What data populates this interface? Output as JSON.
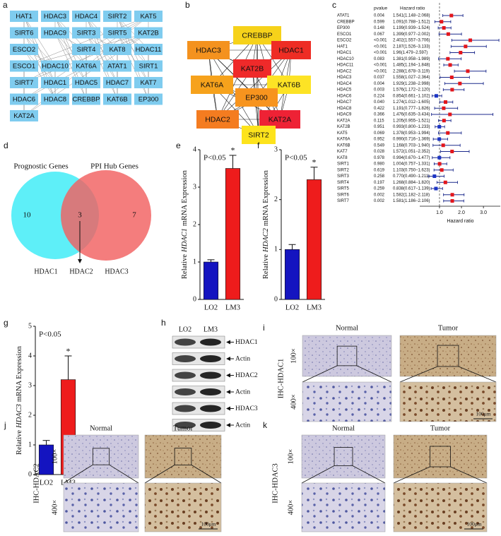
{
  "panel_a": {
    "label": "a",
    "nodes": [
      "HAT1",
      "HDAC3",
      "HDAC4",
      "SIRT2",
      "KAT5",
      "SIRT6",
      "HDAC9",
      "SIRT3",
      "SIRT5",
      "KAT2B",
      "ESCO2",
      "SIRT4",
      "KAT8",
      "HDAC11",
      "ESCO1",
      "HDAC10",
      "KAT6A",
      "ATAT1",
      "SIRT1",
      "SIRT7",
      "HDAC1",
      "HDAC5",
      "HDAC7",
      "KAT7",
      "HDAC6",
      "HDAC8",
      "CREBBP",
      "KAT6B",
      "EP300",
      "KAT2A"
    ]
  },
  "panel_b": {
    "label": "b",
    "nodes": [
      {
        "name": "CREBBP",
        "color": "#f6d21a"
      },
      {
        "name": "HDAC3",
        "color": "#f4921e"
      },
      {
        "name": "HDAC1",
        "color": "#ee2d24"
      },
      {
        "name": "KAT2B",
        "color": "#ef2a2a"
      },
      {
        "name": "KAT6A",
        "color": "#f6a21c"
      },
      {
        "name": "KAT6B",
        "color": "#fde325"
      },
      {
        "name": "EP300",
        "color": "#f7941e"
      },
      {
        "name": "HDAC2",
        "color": "#f47c20"
      },
      {
        "name": "KAT2A",
        "color": "#ee2235"
      },
      {
        "name": "SIRT2",
        "color": "#fde31c"
      }
    ]
  },
  "chart_data": [
    {
      "type": "forest",
      "label": "c",
      "headers": [
        "pvalue",
        "Hazard ratio"
      ],
      "genes": [
        "ATAT1",
        "CREBBP",
        "EP300",
        "ESCO1",
        "ESCO2",
        "HAT1",
        "HDAC1",
        "HDAC10",
        "HDAC11",
        "HDAC2",
        "HDAC3",
        "HDAC4",
        "HDAC5",
        "HDAC6",
        "HDAC7",
        "HDAC8",
        "HDAC9",
        "KAT2A",
        "KAT2B",
        "KAT5",
        "KAT6A",
        "KAT6B",
        "KAT7",
        "KAT8",
        "SIRT1",
        "SIRT2",
        "SIRT3",
        "SIRT4",
        "SIRT5",
        "SIRT6",
        "SIRT7"
      ],
      "pvalues": [
        "0.004",
        "0.599",
        "0.148",
        "0.067",
        "<0.001",
        "<0.001",
        "<0.001",
        "0.083",
        "<0.001",
        "<0.001",
        "0.037",
        "0.004",
        "0.003",
        "0.224",
        "0.040",
        "0.422",
        "0.366",
        "0.115",
        "0.951",
        "0.069",
        "0.952",
        "0.549",
        "0.028",
        "0.978",
        "0.980",
        "0.619",
        "0.258",
        "0.197",
        "0.259",
        "0.002",
        "0.002"
      ],
      "hr_labels": [
        "1.541(1.148−2.068)",
        "1.091(0.788−1.512)",
        "1.199(0.939−1.524)",
        "1.399(0.977−2.002)",
        "2.402(1.557−3.706)",
        "2.187(1.526−3.133)",
        "1.96(1.479−2.597)",
        "1.381(0.958−1.989)",
        "1.485(1.194−1.848)",
        "2.288(1.678−3.119)",
        "1.558(1.027−2.364)",
        "1.929(1.238−2.998)",
        "1.576(1.172−2.120)",
        "0.854(0.661−1.102)",
        "1.274(1.012−1.605)",
        "1.191(0.777−1.826)",
        "1.476(0.635−3.434)",
        "1.205(0.955−1.521)",
        "0.993(0.800−1.233)",
        "1.378(0.953−1.994)",
        "0.990(0.716−1.369)",
        "1.168(0.703−1.940)",
        "1.572(1.051−2.352)",
        "0.994(0.670−1.477)",
        "1.004(0.757−1.331)",
        "1.103(0.750−1.623)",
        "0.770(0.490−1.211)",
        "1.268(0.884−1.820)",
        "0.838(0.617−1.139)",
        "1.582(1.182−2.118)",
        "1.581(1.186−2.106)"
      ],
      "hr": [
        1.541,
        1.091,
        1.199,
        1.399,
        2.402,
        2.187,
        1.96,
        1.381,
        1.485,
        2.288,
        1.558,
        1.929,
        1.576,
        0.854,
        1.274,
        1.191,
        1.476,
        1.205,
        0.993,
        1.378,
        0.99,
        1.168,
        1.572,
        0.994,
        1.004,
        1.103,
        0.77,
        1.268,
        0.838,
        1.582,
        1.581
      ],
      "lower": [
        1.148,
        0.788,
        0.939,
        0.977,
        1.557,
        1.526,
        1.479,
        0.958,
        1.194,
        1.678,
        1.027,
        1.238,
        1.172,
        0.661,
        1.012,
        0.777,
        0.635,
        0.955,
        0.8,
        0.953,
        0.716,
        0.703,
        1.051,
        0.67,
        0.757,
        0.75,
        0.49,
        0.884,
        0.617,
        1.182,
        1.186
      ],
      "upper": [
        2.068,
        1.512,
        1.524,
        2.002,
        3.706,
        3.133,
        2.597,
        1.989,
        1.848,
        3.119,
        2.364,
        2.998,
        2.12,
        1.102,
        1.605,
        1.826,
        3.434,
        1.521,
        1.233,
        1.994,
        1.369,
        1.94,
        2.352,
        1.477,
        1.331,
        1.623,
        1.211,
        1.82,
        1.139,
        2.118,
        2.106
      ],
      "reference": 1,
      "color_up": "#e3161c",
      "color_down": "#1c35c4",
      "line_color": "#1c2a8c",
      "xlim": [
        0.1,
        3.8
      ],
      "xticks": [
        {
          "value": 1,
          "label": "1.0"
        },
        {
          "value": 2,
          "label": "2.0"
        },
        {
          "value": 3,
          "label": "3.0"
        }
      ],
      "xlabel": "Hazard ratio"
    },
    {
      "type": "bar",
      "label": "e",
      "ylabel": {
        "pre": "Relative",
        "gene": "HDAC1",
        "post": "mRNA Expression"
      },
      "categories": [
        "LO2",
        "LM3"
      ],
      "values": [
        1.0,
        3.5
      ],
      "errors": [
        0.06,
        0.35
      ],
      "colors": [
        "#1414c0",
        "#ee1c1c"
      ],
      "annotation": "P<0.05",
      "significance": "*",
      "ylim": [
        0,
        4
      ],
      "yticks": [
        0,
        1,
        2,
        3,
        4
      ]
    },
    {
      "type": "bar",
      "label": "f",
      "ylabel": {
        "pre": "Relative",
        "gene": "HDAC2",
        "post": "mRNA Expression"
      },
      "categories": [
        "LO2",
        "LM3"
      ],
      "values": [
        1.0,
        2.4
      ],
      "errors": [
        0.1,
        0.25
      ],
      "colors": [
        "#1414c0",
        "#ee1c1c"
      ],
      "annotation": "P<0.05",
      "significance": "*",
      "ylim": [
        0,
        3
      ],
      "yticks": [
        0,
        1,
        2,
        3
      ]
    },
    {
      "type": "bar",
      "label": "g",
      "ylabel": {
        "pre": "Relative",
        "gene": "HDAC3",
        "post": "mRNA Expression"
      },
      "categories": [
        "LO2",
        "LM3"
      ],
      "values": [
        1.0,
        3.2
      ],
      "errors": [
        0.15,
        0.8
      ],
      "colors": [
        "#1414c0",
        "#ee1c1c"
      ],
      "annotation": "P<0.05",
      "significance": "*",
      "ylim": [
        0,
        5
      ],
      "yticks": [
        0,
        1,
        2,
        3,
        4,
        5
      ]
    }
  ],
  "panel_d": {
    "label": "d",
    "left_title": "Prognostic Genes",
    "right_title": "PPI Hub Genes",
    "left_count": "10",
    "overlap_count": "3",
    "right_count": "7",
    "genes": [
      "HDAC1",
      "HDAC2",
      "HDAC3"
    ]
  },
  "panel_h": {
    "label": "h",
    "lanes": [
      "LO2",
      "LM3"
    ],
    "bands": [
      "HDAC1",
      "Actin",
      "HDAC2",
      "Actin",
      "HDAC3",
      "Actin"
    ]
  },
  "panel_i": {
    "label": "i",
    "columns": [
      "Normal",
      "Tumor"
    ],
    "row_title": "IHC-HDAC1",
    "rows": [
      "100×",
      "400×"
    ],
    "scale_bar": "100μm"
  },
  "panel_j": {
    "label": "j",
    "columns": [
      "Normal",
      "Tumor"
    ],
    "row_title": "IHC-HDAC2",
    "rows": [
      "100×",
      "400×"
    ],
    "scale_bar": "100μm"
  },
  "panel_k": {
    "label": "k",
    "columns": [
      "Normal",
      "Tumor"
    ],
    "row_title": "IHC-HDAC3",
    "rows": [
      "100×",
      "400×"
    ],
    "scale_bar": "100μm"
  }
}
